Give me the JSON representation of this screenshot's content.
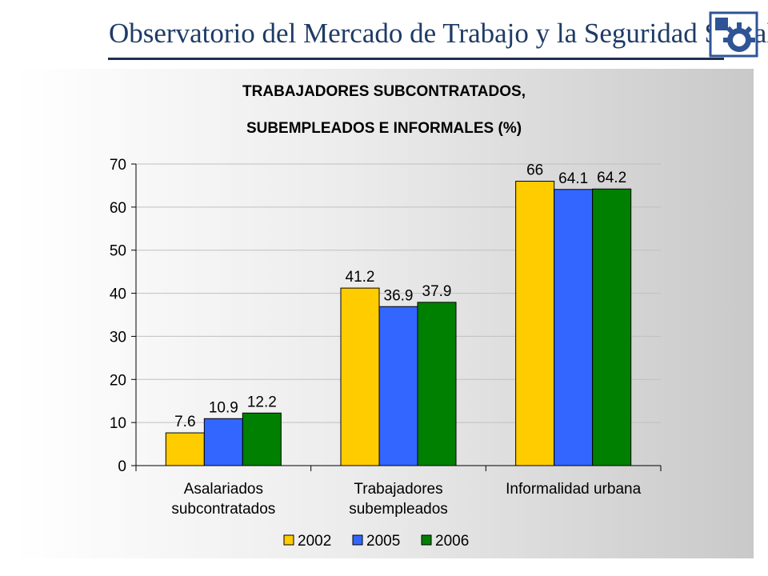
{
  "header": {
    "title": "Observatorio del Mercado de Trabajo y la Seguridad Social",
    "logo_icon": "gear-icon",
    "colors": {
      "title": "#1f3b66",
      "logo_blue": "#2f5496"
    }
  },
  "chart_data": {
    "type": "bar",
    "title": "TRABAJADORES SUBCONTRATADOS,",
    "subtitle": "SUBEMPLEADOS E INFORMALES (%)",
    "categories": [
      [
        "Asalariados",
        "subcontratados"
      ],
      [
        "Trabajadores",
        "subempleados"
      ],
      [
        "Informalidad urbana"
      ]
    ],
    "series": [
      {
        "name": "2002",
        "values": [
          7.6,
          41.2,
          66
        ],
        "labels": [
          "7.6",
          "41.2",
          "66"
        ],
        "color": "#ffcc00"
      },
      {
        "name": "2005",
        "values": [
          10.9,
          36.9,
          64.1
        ],
        "labels": [
          "10.9",
          "36.9",
          "64.1"
        ],
        "color": "#3366ff"
      },
      {
        "name": "2006",
        "values": [
          12.2,
          37.9,
          64.2
        ],
        "labels": [
          "12.2",
          "37.9",
          "64.2"
        ],
        "color": "#008000"
      }
    ],
    "ylim": [
      0,
      70
    ],
    "yticks": [
      "0",
      "10",
      "20",
      "30",
      "40",
      "50",
      "60",
      "70"
    ],
    "xlabel": "",
    "ylabel": "",
    "grid": true,
    "legend_position": "bottom"
  }
}
